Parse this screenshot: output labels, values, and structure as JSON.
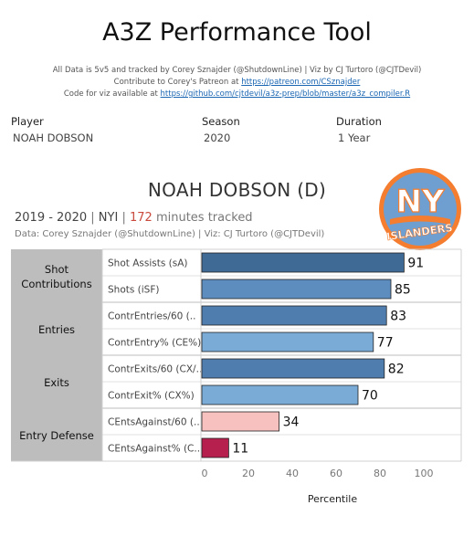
{
  "header": {
    "title": "A3Z Performance Tool",
    "credit_line1": "All Data is 5v5 and tracked by Corey Sznajder (@ShutdownLine) | Viz by CJ Turtoro (@CJTDevil)",
    "credit_line2_prefix": "Contribute to Corey's Patreon at ",
    "credit_line2_link": "https://patreon.com/CSznajder",
    "credit_line3_prefix": "Code for viz available at ",
    "credit_line3_link": "https://github.com/cjtdevil/a3z-prep/blob/master/a3z_compiler.R"
  },
  "filters": {
    "player_label": "Player",
    "player_value": "NOAH DOBSON",
    "season_label": "Season",
    "season_value": "2020",
    "duration_label": "Duration",
    "duration_value": "1 Year"
  },
  "card": {
    "player_title": "NOAH DOBSON (D)",
    "seasons": "2019 - 2020",
    "team": "NYI",
    "minutes": "172",
    "minutes_suffix": "minutes tracked",
    "data_source": "Data: Corey Sznajder (@ShutdownLine) | Viz: CJ Turtoro (@CJTDevil)",
    "logo_text": "ISLANDERS",
    "logo_monogram": "NY"
  },
  "colors": {
    "dark_blue": "#3f6a96",
    "mid_blue": "#5d8cbf",
    "light_blue": "#7aaad6",
    "light_pink": "#f7c1bf",
    "crimson": "#b5204f",
    "category_bg": "#bdbdbd",
    "logo_blue": "#6f9fd0",
    "logo_orange": "#f47d30"
  },
  "chart_data": {
    "type": "bar",
    "orientation": "horizontal",
    "xlabel": "Percentile",
    "xlim": [
      0,
      100
    ],
    "xticks": [
      0,
      20,
      40,
      60,
      80,
      100
    ],
    "groups": [
      {
        "category": "Shot Contributions",
        "metrics": [
          {
            "label": "Shot Assists (sA)",
            "value": 91,
            "color": "#3f6a96"
          },
          {
            "label": "Shots (iSF)",
            "value": 85,
            "color": "#5d8cbf"
          }
        ]
      },
      {
        "category": "Entries",
        "metrics": [
          {
            "label": "ContrEntries/60 (..",
            "value": 83,
            "color": "#4f7dad"
          },
          {
            "label": "ContrEntry% (CE%)",
            "value": 77,
            "color": "#7aaad6"
          }
        ]
      },
      {
        "category": "Exits",
        "metrics": [
          {
            "label": "ContrExits/60 (CX/..",
            "value": 82,
            "color": "#4f7dad"
          },
          {
            "label": "ContrExit% (CX%)",
            "value": 70,
            "color": "#7aaad6"
          }
        ]
      },
      {
        "category": "Entry Defense",
        "metrics": [
          {
            "label": "CEntsAgainst/60 (..",
            "value": 34,
            "color": "#f7c1bf"
          },
          {
            "label": "CEntsAgainst% (C..",
            "value": 11,
            "color": "#b5204f"
          }
        ]
      }
    ]
  }
}
